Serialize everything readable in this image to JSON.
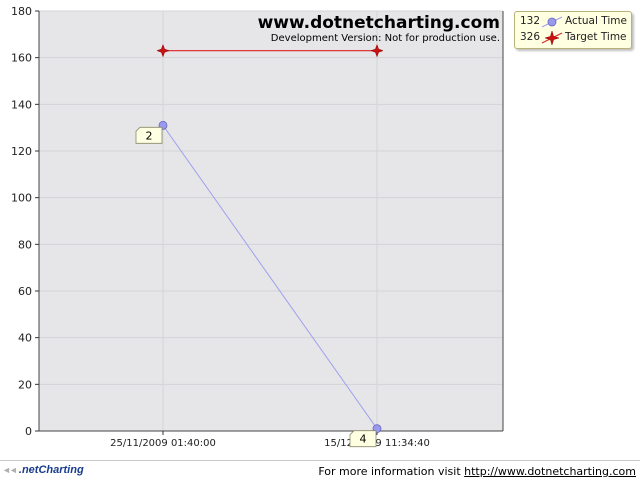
{
  "watermark": {
    "title": "www.dotnetcharting.com",
    "subtitle": "Development Version: Not for production use."
  },
  "colors": {
    "plot_background": "#e6e6e8",
    "grid": "#d4d4d8",
    "actual_line": "#a0a0f0",
    "actual_marker": "#9999ee",
    "target_line": "#dd2222",
    "target_marker": "#cc1111",
    "label_fill": "#ffffe1"
  },
  "legend": {
    "entries": [
      {
        "total": "132",
        "name": "Actual Time",
        "marker": "circle-marker-icon"
      },
      {
        "total": "326",
        "name": "Target Time",
        "marker": "star-marker-icon"
      }
    ]
  },
  "footer": {
    "logo_text": ".netCharting",
    "info_text": "For more information visit ",
    "info_link": "http://www.dotnetcharting.com"
  },
  "chart_data": {
    "type": "line",
    "categories": [
      "25/11/2009 01:40:00",
      "15/12/2009 11:34:40"
    ],
    "ylim": [
      0,
      180
    ],
    "yticks": [
      0,
      20,
      40,
      60,
      80,
      100,
      120,
      140,
      160,
      180
    ],
    "grid": true,
    "legend_position": "top-right",
    "series": [
      {
        "name": "Actual Time",
        "values": [
          131,
          1
        ],
        "labels": [
          "2",
          "4"
        ]
      },
      {
        "name": "Target Time",
        "values": [
          163,
          163
        ]
      }
    ]
  }
}
